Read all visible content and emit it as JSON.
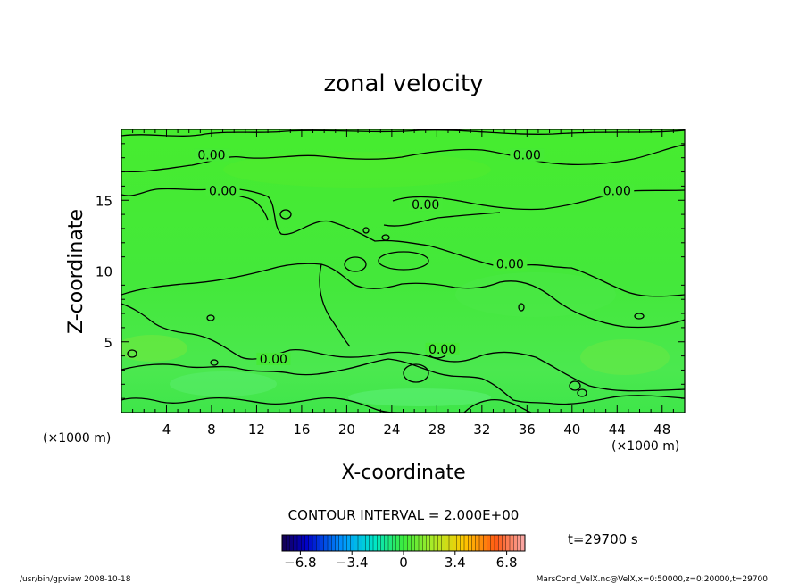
{
  "chart_data": {
    "type": "heatmap",
    "title": "zonal velocity",
    "xlabel": "X-coordinate",
    "ylabel": "Z-coordinate",
    "x_unit": "(×1000 m)",
    "y_unit": "(×1000 m)",
    "xlim": [
      0,
      50
    ],
    "ylim": [
      0,
      20
    ],
    "x_ticks": [
      4,
      8,
      12,
      16,
      20,
      24,
      28,
      32,
      36,
      40,
      44,
      48
    ],
    "y_ticks": [
      5,
      10,
      15
    ],
    "contour_interval_text": "CONTOUR INTERVAL = 2.000E+00",
    "time_text": "t=29700 s",
    "colorbar": {
      "min": -8,
      "max": 8,
      "ticks": [
        -6.8,
        -3.4,
        0,
        3.4,
        6.8
      ],
      "tick_labels": [
        "−6.8",
        "−3.4",
        "0",
        "3.4",
        "6.8"
      ]
    },
    "contour_labels": [
      {
        "text": "0.00",
        "x": 8,
        "z": 18
      },
      {
        "text": "0.00",
        "x": 36,
        "z": 18
      },
      {
        "text": "0.00",
        "x": 44,
        "z": 15.5
      },
      {
        "text": "0.00",
        "x": 9,
        "z": 15.5
      },
      {
        "text": "0.00",
        "x": 27,
        "z": 14.5
      },
      {
        "text": "0.00",
        "x": 34.5,
        "z": 10.3
      },
      {
        "text": "0.00",
        "x": 13.5,
        "z": 3.6
      },
      {
        "text": "0.00",
        "x": 28.5,
        "z": 4.3
      }
    ]
  },
  "footer": {
    "left": "/usr/bin/gpview   2008-10-18",
    "right": "MarsCond_VelX.nc@VelX,x=0:50000,z=0:20000,t=29700"
  }
}
